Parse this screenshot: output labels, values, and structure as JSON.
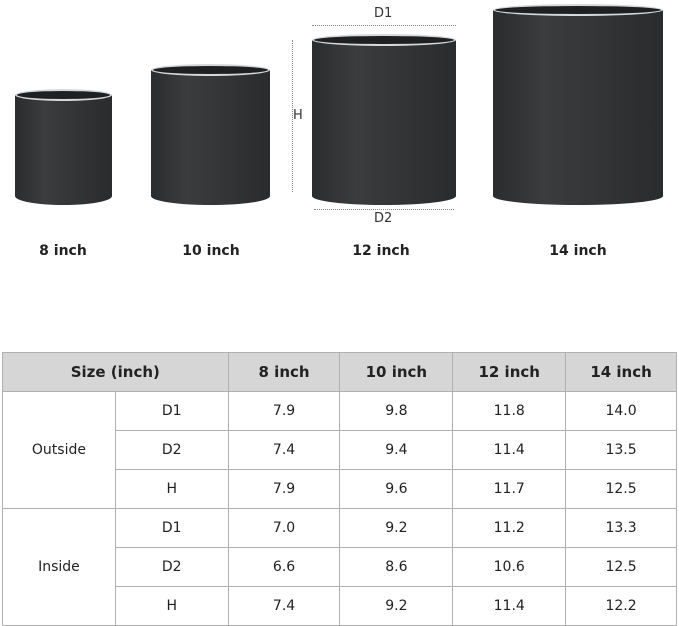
{
  "pots": [
    {
      "label": "8 inch"
    },
    {
      "label": "10 inch"
    },
    {
      "label": "12 inch"
    },
    {
      "label": "14 inch"
    }
  ],
  "dimension_labels": {
    "d1": "D1",
    "d2": "D2",
    "h": "H"
  },
  "table": {
    "header": [
      "Size (inch)",
      "8 inch",
      "10 inch",
      "12 inch",
      "14 inch"
    ],
    "groups": [
      {
        "name": "Outside",
        "rows": [
          {
            "dim": "D1",
            "values": [
              "7.9",
              "9.8",
              "11.8",
              "14.0"
            ]
          },
          {
            "dim": "D2",
            "values": [
              "7.4",
              "9.4",
              "11.4",
              "13.5"
            ]
          },
          {
            "dim": "H",
            "values": [
              "7.9",
              "9.6",
              "11.7",
              "12.5"
            ]
          }
        ]
      },
      {
        "name": "Inside",
        "rows": [
          {
            "dim": "D1",
            "values": [
              "7.0",
              "9.2",
              "11.2",
              "13.3"
            ]
          },
          {
            "dim": "D2",
            "values": [
              "6.6",
              "8.6",
              "10.6",
              "12.5"
            ]
          },
          {
            "dim": "H",
            "values": [
              "7.4",
              "9.2",
              "11.4",
              "12.2"
            ]
          }
        ]
      }
    ]
  }
}
